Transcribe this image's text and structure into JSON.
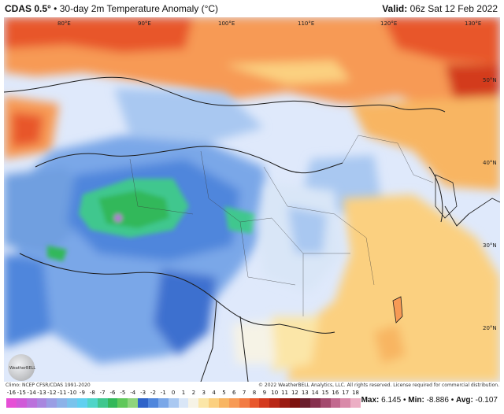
{
  "header": {
    "model": "CDAS 0.5°",
    "separator": "•",
    "product": "30-day 2m Temperature Anomaly (°C)",
    "valid_label": "Valid:",
    "valid_time": "06z Sat 12 Feb 2022"
  },
  "map": {
    "lon_labels": [
      "80°E",
      "90°E",
      "100°E",
      "110°E",
      "120°E",
      "130°E"
    ],
    "lat_labels": [
      "50°N",
      "40°N",
      "30°N",
      "20°N"
    ],
    "colors": {
      "ocean": "#e3ecfb",
      "warm_strong": "#e8572c",
      "warm_mid": "#f79a55",
      "warm_light": "#fbd080",
      "neutral_light": "#eaf0fb",
      "cool_light": "#b9d2f3",
      "cool_mid": "#6f9fe0",
      "cool_deep": "#3c6fcf",
      "green_anomaly": "#3fbf4a",
      "border": "#1c1c1c"
    }
  },
  "footer": {
    "climo": "Climo: NCEP CFSR/CDAS 1991-2020",
    "copyright": "© 2022 WeatherBELL Analytics, LLC. All rights reserved. License required for commercial distribution.",
    "logo_text": "WeatherBELL"
  },
  "legend": {
    "ticks": [
      "-16",
      "-15",
      "-14",
      "-13",
      "-12",
      "-11",
      "-10",
      "-9",
      "-8",
      "-7",
      "-6",
      "-5",
      "-4",
      "-3",
      "-2",
      "-1",
      "0",
      "1",
      "2",
      "3",
      "4",
      "5",
      "6",
      "7",
      "8",
      "9",
      "10",
      "11",
      "12",
      "13",
      "14",
      "15",
      "16",
      "17",
      "18"
    ],
    "colors": [
      "#e64fd6",
      "#d05ad8",
      "#bb71dc",
      "#a987df",
      "#9a9ee4",
      "#8cb2e8",
      "#79c3ec",
      "#60d0f0",
      "#4fd5c8",
      "#3fc78e",
      "#33b85a",
      "#5fc85a",
      "#8fd47d",
      "#2e63c9",
      "#4f86dc",
      "#7aa7e8",
      "#a9c8f1",
      "#d9e6f7",
      "#f6f3e6",
      "#fbe6a8",
      "#fbd080",
      "#f8b562",
      "#f79a55",
      "#f27b43",
      "#e8572c",
      "#d33a1e",
      "#b82716",
      "#9a1b12",
      "#7c120e",
      "#6a1e2c",
      "#86304e",
      "#a34a6e",
      "#c2698f",
      "#d98aa9",
      "#ecaec4"
    ],
    "stats": {
      "max_label": "Max:",
      "max": "6.145",
      "min_label": "Min:",
      "min": "-8.886",
      "avg_label": "Avg:",
      "avg": "-0.107"
    }
  }
}
